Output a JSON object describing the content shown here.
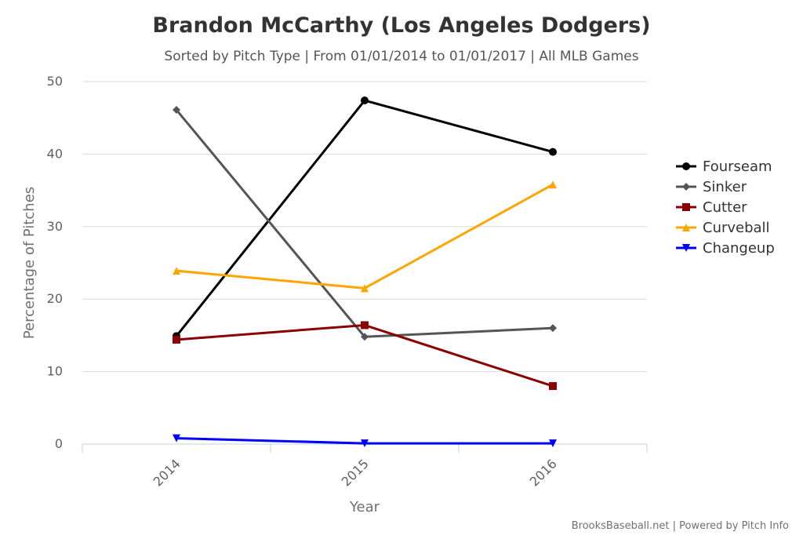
{
  "chart_data": {
    "type": "line",
    "title": "Brandon McCarthy (Los Angeles Dodgers)",
    "subtitle": "Sorted by Pitch Type | From 01/01/2014 to 01/01/2017 | All MLB Games",
    "xlabel": "Year",
    "ylabel": "Percentage of Pitches",
    "categories": [
      "2014",
      "2015",
      "2016"
    ],
    "ylim": [
      0,
      50
    ],
    "yticks": [
      0,
      10,
      20,
      30,
      40,
      50
    ],
    "grid": true,
    "legend_position": "right",
    "series": [
      {
        "name": "Fourseam",
        "color": "#000000",
        "marker": "circle",
        "values": [
          14.9,
          47.4,
          40.3
        ]
      },
      {
        "name": "Sinker",
        "color": "#555555",
        "marker": "diamond",
        "values": [
          46.1,
          14.8,
          16.0
        ]
      },
      {
        "name": "Cutter",
        "color": "#8b0000",
        "marker": "square",
        "values": [
          14.4,
          16.4,
          8.0
        ]
      },
      {
        "name": "Curveball",
        "color": "#ffa500",
        "marker": "triangle",
        "values": [
          23.9,
          21.5,
          35.8
        ]
      },
      {
        "name": "Changeup",
        "color": "#0000ff",
        "marker": "triangle-down",
        "values": [
          0.8,
          0.1,
          0.1
        ]
      }
    ]
  },
  "credits": "BrooksBaseball.net | Powered by Pitch Info"
}
